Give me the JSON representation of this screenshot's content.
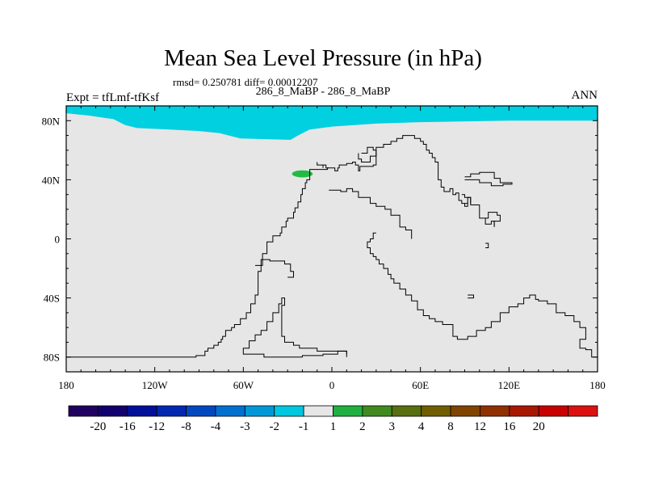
{
  "chart_data": {
    "type": "heatmap",
    "title": "Mean Sea Level Pressure (in hPa)",
    "stats": "rmsd= 0.250781 diff= 0.00012207",
    "case_label": "286_8_MaBP - 286_8_MaBP",
    "left_label": "Expt = tfLmf-tfKsf",
    "right_label": "ANN",
    "x_ticks": [
      {
        "value": -180,
        "label": "180"
      },
      {
        "value": -120,
        "label": "120W"
      },
      {
        "value": -60,
        "label": "60W"
      },
      {
        "value": 0,
        "label": "0"
      },
      {
        "value": 60,
        "label": "60E"
      },
      {
        "value": 120,
        "label": "120E"
      },
      {
        "value": 180,
        "label": "180"
      }
    ],
    "y_ticks": [
      {
        "value": 80,
        "label": "80N"
      },
      {
        "value": 40,
        "label": "40N"
      },
      {
        "value": 0,
        "label": "0"
      },
      {
        "value": -40,
        "label": "40S"
      },
      {
        "value": -80,
        "label": "80S"
      }
    ],
    "xlim": [
      -180,
      180
    ],
    "ylim": [
      -90,
      90
    ],
    "background_value_bin": "-1 to 1",
    "anomalies": [
      {
        "region": "Arctic cap",
        "bin": "-2 to -1",
        "color": "#00d0e0",
        "boundary": [
          [
            -180,
            85
          ],
          [
            -165,
            83.5
          ],
          [
            -148,
            81
          ],
          [
            -140,
            77
          ],
          [
            -132,
            75
          ],
          [
            -110,
            74
          ],
          [
            -90,
            73
          ],
          [
            -76,
            71.5
          ],
          [
            -62,
            68
          ],
          [
            -28,
            67
          ],
          [
            -23,
            70
          ],
          [
            -15,
            74
          ],
          [
            0,
            76
          ],
          [
            30,
            78
          ],
          [
            60,
            79
          ],
          [
            120,
            80
          ],
          [
            180,
            80
          ],
          [
            180,
            90
          ],
          [
            -180,
            90
          ]
        ]
      },
      {
        "region": "Mediterranean",
        "bin": "1 to 2",
        "color": "#22bb44",
        "center": [
          -20,
          44
        ],
        "half_width": [
          7,
          2.4
        ]
      }
    ],
    "colorbar": {
      "colors": [
        "#200060",
        "#12006f",
        "#00109a",
        "#0028b0",
        "#0048c0",
        "#0070d0",
        "#0098d8",
        "#00c8e0",
        "#e6e6e6",
        "#20b040",
        "#408a20",
        "#587010",
        "#705e00",
        "#804400",
        "#903000",
        "#a81800",
        "#c80000",
        "#dd1010"
      ],
      "labels": [
        "-20",
        "-16",
        "-12",
        "-8",
        "-4",
        "-3",
        "-2",
        "-1",
        "1",
        "2",
        "3",
        "4",
        "8",
        "12",
        "16",
        "20"
      ]
    },
    "coastlines": [
      [
        [
          -180,
          -80
        ],
        [
          -92,
          -80
        ],
        [
          -92,
          -79
        ],
        [
          -90,
          -79
        ],
        [
          -86,
          -76
        ],
        [
          -84,
          -74
        ],
        [
          -80,
          -72
        ],
        [
          -77,
          -70
        ],
        [
          -75,
          -68
        ],
        [
          -74,
          -66
        ],
        [
          -72,
          -62
        ],
        [
          -68,
          -60
        ],
        [
          -66,
          -58
        ],
        [
          -62,
          -54
        ],
        [
          -58,
          -50
        ],
        [
          -55,
          -44
        ],
        [
          -52,
          -38
        ],
        [
          -50,
          -30
        ],
        [
          -50,
          -22
        ],
        [
          -48,
          -18
        ],
        [
          -47,
          -10
        ],
        [
          -44,
          -2
        ],
        [
          -40,
          2
        ],
        [
          -35,
          4
        ],
        [
          -34,
          8
        ],
        [
          -31,
          12
        ],
        [
          -30,
          14
        ],
        [
          -26,
          18
        ],
        [
          -25,
          21
        ],
        [
          -23,
          25
        ],
        [
          -21,
          30
        ],
        [
          -20,
          34
        ],
        [
          -18,
          38
        ],
        [
          -17,
          40
        ],
        [
          -15,
          44
        ],
        [
          -15,
          47
        ],
        [
          -5,
          47
        ],
        [
          -3,
          48
        ],
        [
          0,
          48
        ],
        [
          2,
          46
        ],
        [
          4,
          48
        ],
        [
          5,
          50
        ],
        [
          10,
          51
        ],
        [
          14,
          52
        ],
        [
          16,
          50
        ],
        [
          18,
          46
        ],
        [
          19,
          49
        ],
        [
          24,
          49
        ],
        [
          28,
          50
        ],
        [
          30,
          56
        ],
        [
          30,
          62
        ],
        [
          35,
          64
        ],
        [
          40,
          66
        ],
        [
          44,
          68
        ],
        [
          48,
          70
        ],
        [
          56,
          68
        ],
        [
          60,
          66
        ],
        [
          62,
          64
        ],
        [
          64,
          60
        ],
        [
          66,
          58
        ],
        [
          68,
          55
        ],
        [
          70,
          52
        ],
        [
          72,
          45
        ],
        [
          72,
          40
        ],
        [
          74,
          35
        ],
        [
          76,
          32
        ],
        [
          80,
          34
        ],
        [
          82,
          30
        ],
        [
          84,
          31
        ],
        [
          86,
          26
        ],
        [
          88,
          24
        ],
        [
          92,
          22
        ],
        [
          90,
          24
        ],
        [
          92,
          28
        ],
        [
          94,
          23
        ],
        [
          100,
          14
        ],
        [
          104,
          10
        ],
        [
          108,
          12
        ],
        [
          110,
          8
        ]
      ],
      [
        [
          -2,
          33
        ],
        [
          6,
          32
        ],
        [
          10,
          34
        ],
        [
          14,
          32
        ],
        [
          18,
          28
        ],
        [
          26,
          24
        ],
        [
          30,
          22
        ],
        [
          36,
          20
        ],
        [
          40,
          16
        ],
        [
          46,
          8
        ],
        [
          50,
          6
        ],
        [
          54,
          0
        ]
      ],
      [
        [
          30,
          4
        ],
        [
          28,
          0
        ],
        [
          26,
          -2
        ],
        [
          24,
          -6
        ],
        [
          26,
          -10
        ],
        [
          28,
          -12
        ],
        [
          30,
          -14
        ],
        [
          32,
          -17
        ],
        [
          35,
          -20
        ],
        [
          38,
          -24
        ],
        [
          40,
          -27
        ],
        [
          42,
          -30
        ],
        [
          46,
          -34
        ],
        [
          50,
          -38
        ],
        [
          54,
          -42
        ],
        [
          58,
          -48
        ],
        [
          62,
          -52
        ],
        [
          66,
          -54
        ],
        [
          70,
          -56
        ],
        [
          75,
          -58
        ],
        [
          82,
          -66
        ],
        [
          85,
          -68
        ],
        [
          92,
          -66
        ],
        [
          98,
          -62
        ],
        [
          104,
          -60
        ],
        [
          108,
          -56
        ],
        [
          114,
          -50
        ],
        [
          120,
          -46
        ],
        [
          126,
          -44
        ],
        [
          130,
          -40
        ],
        [
          134,
          -38
        ],
        [
          138,
          -41
        ],
        [
          140,
          -42
        ],
        [
          146,
          -44
        ],
        [
          152,
          -50
        ],
        [
          158,
          -52
        ],
        [
          164,
          -56
        ],
        [
          168,
          -60
        ],
        [
          172,
          -62
        ],
        [
          172,
          -68
        ],
        [
          168,
          -74
        ],
        [
          172,
          -75
        ],
        [
          176,
          -80
        ],
        [
          180,
          -80
        ]
      ],
      [
        [
          -52,
          -18
        ],
        [
          -48,
          -14
        ],
        [
          -42,
          -15
        ],
        [
          -32,
          -17
        ],
        [
          -28,
          -22
        ],
        [
          -26,
          -26
        ],
        [
          -30,
          -26
        ]
      ],
      [
        [
          -58,
          -78
        ],
        [
          -60,
          -74
        ],
        [
          -56,
          -69
        ],
        [
          -52,
          -65
        ],
        [
          -48,
          -62
        ],
        [
          -44,
          -56
        ],
        [
          -40,
          -50
        ],
        [
          -36,
          -44
        ],
        [
          -34,
          -40
        ],
        [
          -32,
          -45
        ],
        [
          -34,
          -50
        ],
        [
          -34,
          -56
        ],
        [
          -34,
          -66
        ],
        [
          -32,
          -70
        ],
        [
          -26,
          -72
        ],
        [
          -22,
          -74
        ],
        [
          -14,
          -74
        ],
        [
          -10,
          -76
        ],
        [
          0,
          -76
        ],
        [
          10,
          -78
        ]
      ],
      [
        [
          -58,
          -78
        ],
        [
          -46,
          -80
        ],
        [
          -32,
          -80
        ],
        [
          -20,
          -79
        ],
        [
          -6,
          -78
        ],
        [
          4,
          -76
        ],
        [
          10,
          -78
        ],
        [
          10,
          -80
        ]
      ],
      [
        [
          -2,
          48
        ],
        [
          -4,
          50
        ],
        [
          -10,
          52
        ],
        [
          -10,
          50
        ],
        [
          -6,
          48
        ]
      ],
      [
        [
          20,
          58
        ],
        [
          24,
          62
        ],
        [
          28,
          60
        ],
        [
          30,
          56
        ],
        [
          26,
          52
        ],
        [
          20,
          54
        ],
        [
          18,
          58
        ]
      ],
      [
        [
          90,
          42
        ],
        [
          94,
          44
        ],
        [
          100,
          45
        ],
        [
          110,
          41
        ],
        [
          114,
          38
        ],
        [
          122,
          37
        ],
        [
          116,
          36
        ],
        [
          108,
          38
        ],
        [
          100,
          40
        ],
        [
          90,
          40
        ]
      ],
      [
        [
          88,
          30
        ],
        [
          90,
          28
        ],
        [
          94,
          24
        ]
      ],
      [
        [
          104,
          14
        ],
        [
          106,
          18
        ],
        [
          112,
          16
        ],
        [
          114,
          12
        ],
        [
          110,
          9
        ]
      ],
      [
        [
          104,
          -6
        ],
        [
          106,
          -6
        ],
        [
          106,
          -3
        ],
        [
          104,
          -3
        ]
      ],
      [
        [
          92,
          -40
        ],
        [
          96,
          -40
        ],
        [
          96,
          -38
        ],
        [
          92,
          -38
        ]
      ]
    ]
  }
}
